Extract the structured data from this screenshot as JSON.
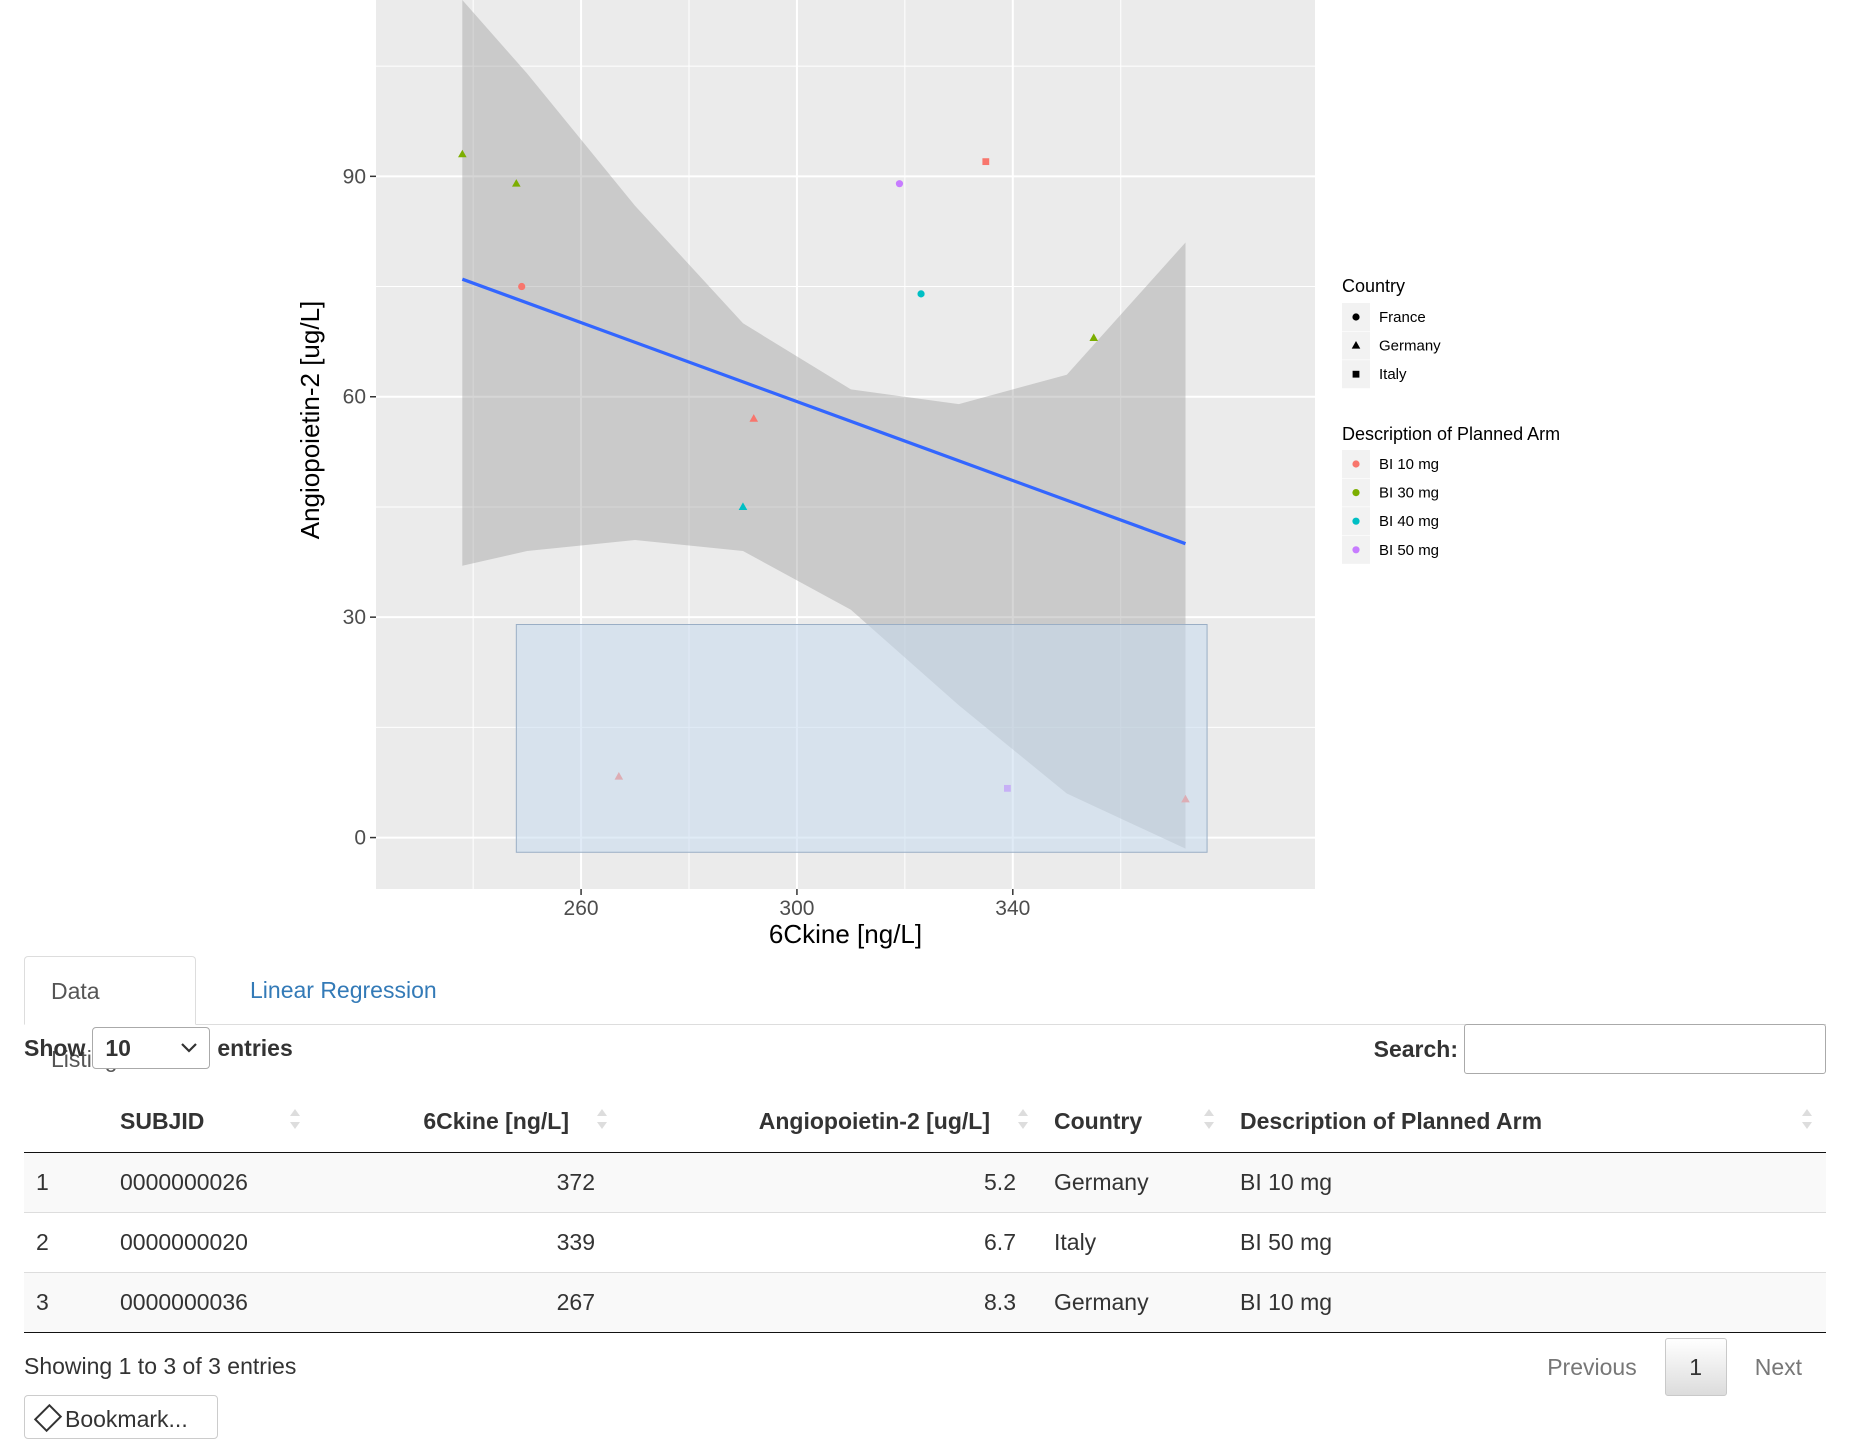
{
  "chart_data": {
    "type": "scatter",
    "xlabel": "6Ckine [ng/L]",
    "ylabel": "Angiopoietin-2 [ug/L]",
    "xlim": [
      222,
      396
    ],
    "ylim": [
      -7,
      114
    ],
    "x_ticks": [
      260,
      300,
      340
    ],
    "y_ticks": [
      0,
      30,
      60,
      90
    ],
    "grid": true,
    "legend_placement": "right",
    "legends": [
      {
        "title": "Country",
        "entries": [
          {
            "label": "France",
            "shape": "circle"
          },
          {
            "label": "Germany",
            "shape": "triangle"
          },
          {
            "label": "Italy",
            "shape": "square"
          }
        ]
      },
      {
        "title": "Description of Planned Arm",
        "entries": [
          {
            "label": "BI 10 mg",
            "color": "#F8766D"
          },
          {
            "label": "BI 30 mg",
            "color": "#7CAE00"
          },
          {
            "label": "BI 40 mg",
            "color": "#00BFC4"
          },
          {
            "label": "BI 50 mg",
            "color": "#C77CFF"
          }
        ]
      }
    ],
    "points": [
      {
        "x": 238,
        "y": 93,
        "shape": "triangle",
        "color": "#7CAE00"
      },
      {
        "x": 248,
        "y": 89,
        "shape": "triangle",
        "color": "#7CAE00"
      },
      {
        "x": 249,
        "y": 75,
        "shape": "circle",
        "color": "#F8766D"
      },
      {
        "x": 267,
        "y": 8.3,
        "shape": "triangle",
        "color": "#F8766D"
      },
      {
        "x": 290,
        "y": 45,
        "shape": "triangle",
        "color": "#00BFC4"
      },
      {
        "x": 292,
        "y": 57,
        "shape": "triangle",
        "color": "#F8766D"
      },
      {
        "x": 319,
        "y": 89,
        "shape": "circle",
        "color": "#C77CFF"
      },
      {
        "x": 323,
        "y": 74,
        "shape": "circle",
        "color": "#00BFC4"
      },
      {
        "x": 335,
        "y": 92,
        "shape": "square",
        "color": "#F8766D"
      },
      {
        "x": 339,
        "y": 6.7,
        "shape": "square",
        "color": "#C77CFF"
      },
      {
        "x": 355,
        "y": 68,
        "shape": "triangle",
        "color": "#7CAE00"
      },
      {
        "x": 372,
        "y": 5.2,
        "shape": "triangle",
        "color": "#F8766D"
      }
    ],
    "regression": {
      "x": [
        238,
        372
      ],
      "y": [
        76,
        40
      ],
      "color": "#3366FF"
    },
    "confidence_band": {
      "x": [
        238,
        250,
        270,
        290,
        310,
        330,
        350,
        372
      ],
      "upper": [
        114,
        104,
        86,
        70,
        61,
        59,
        63,
        81
      ],
      "lower": [
        37,
        39,
        40.5,
        39,
        31,
        18,
        6,
        -1.5
      ]
    },
    "selection_brush": {
      "x": [
        248,
        376
      ],
      "y": [
        -2,
        29
      ],
      "color": "#c6dbef"
    }
  },
  "colors": {
    "link": "#337ab7",
    "panel": "#ebebeb"
  },
  "tabs": [
    {
      "label": "Data Listing",
      "active": true
    },
    {
      "label": "Linear Regression",
      "active": false
    }
  ],
  "table_controls": {
    "show_label": "Show",
    "length_value": "10",
    "entries_label": "entries",
    "search_label": "Search:",
    "search_value": ""
  },
  "table": {
    "columns": [
      "",
      "SUBJID",
      "6Ckine [ng/L]",
      "Angiopoietin-2 [ug/L]",
      "Country",
      "Description of Planned Arm"
    ],
    "rows": [
      [
        "1",
        "0000000026",
        "372",
        "5.2",
        "Germany",
        "BI 10 mg"
      ],
      [
        "2",
        "0000000020",
        "339",
        "6.7",
        "Italy",
        "BI 50 mg"
      ],
      [
        "3",
        "0000000036",
        "267",
        "8.3",
        "Germany",
        "BI 10 mg"
      ]
    ]
  },
  "footer": {
    "info": "Showing 1 to 3 of 3 entries",
    "previous": "Previous",
    "page": "1",
    "next": "Next",
    "bookmark": "Bookmark..."
  }
}
